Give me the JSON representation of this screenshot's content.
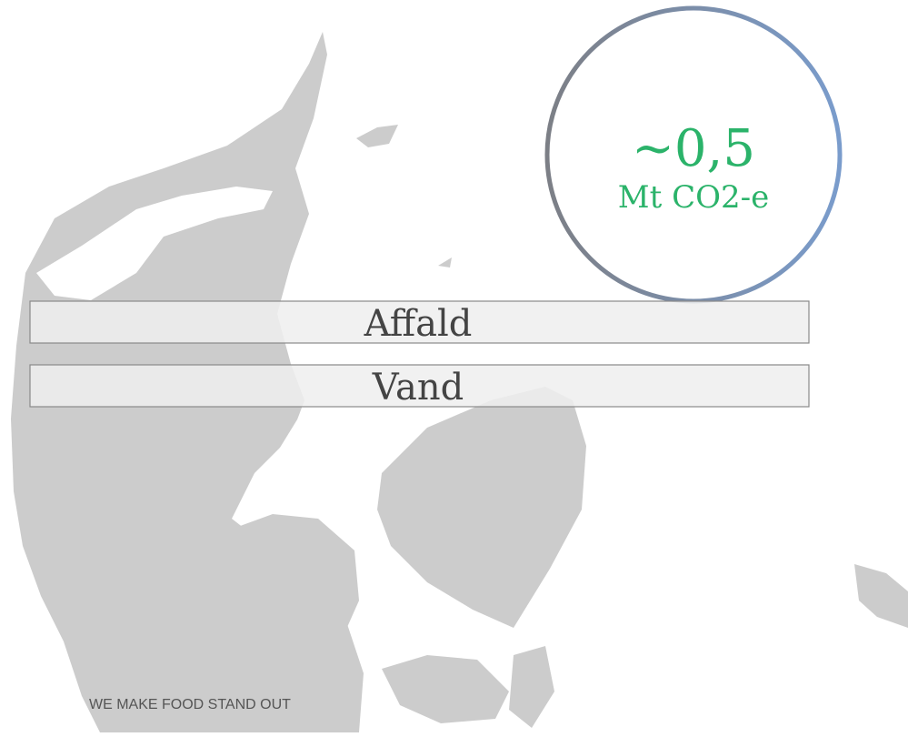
{
  "circle": {
    "value": "~0,5",
    "unit": "Mt CO2-e"
  },
  "boxes": [
    "Affald",
    "Vand"
  ],
  "footer": "WE MAKE FOOD STAND OUT"
}
